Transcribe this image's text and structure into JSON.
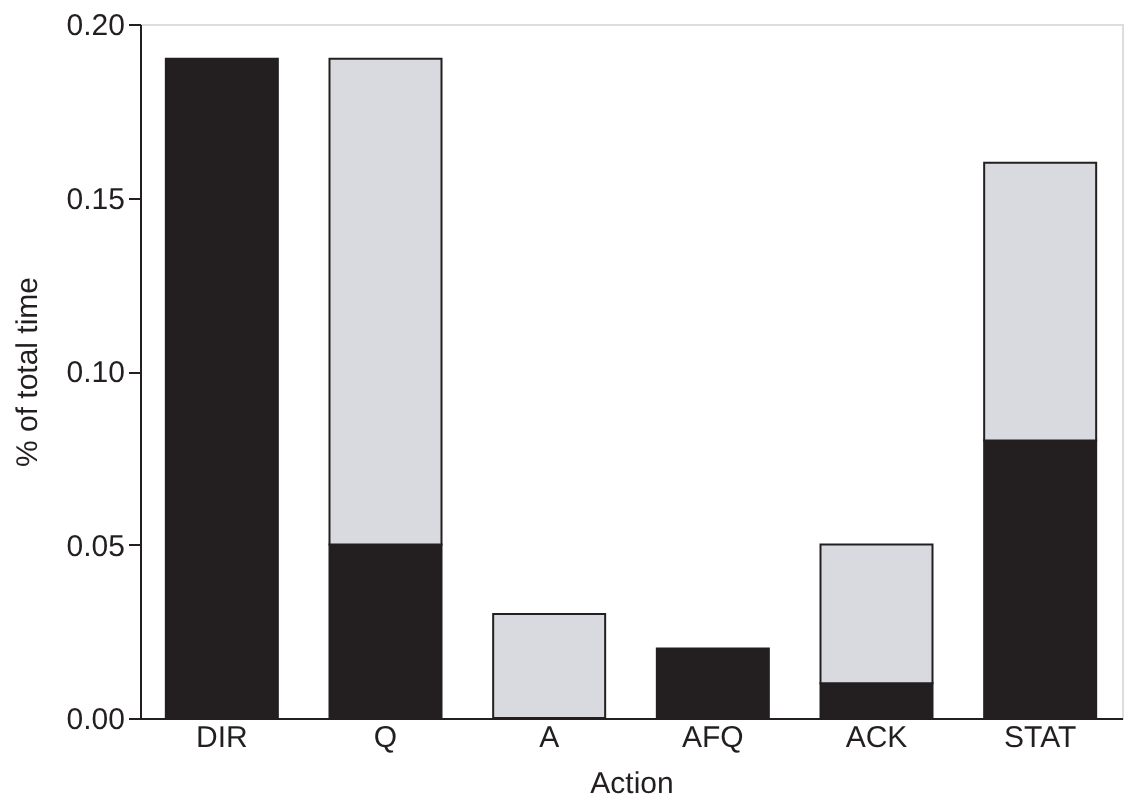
{
  "chart_data": {
    "type": "bar",
    "stacked": true,
    "xlabel": "Action",
    "ylabel": "% of total time",
    "categories": [
      "DIR",
      "Q",
      "A",
      "AFQ",
      "ACK",
      "STAT"
    ],
    "series": [
      {
        "color": "#231f20",
        "values": [
          0.19,
          0.05,
          0,
          0.02,
          0.01,
          0.08
        ]
      },
      {
        "color": "#d9dadf",
        "values": [
          0,
          0.14,
          0.03,
          0,
          0.04,
          0.08
        ]
      }
    ],
    "ylim": [
      0,
      0.2
    ],
    "yticks": [
      {
        "value": 0,
        "label": "0.00"
      },
      {
        "value": 0.05,
        "label": "0.05"
      },
      {
        "value": 0.1,
        "label": "0.10"
      },
      {
        "value": 0.15,
        "label": "0.15"
      },
      {
        "value": 0.2,
        "label": "0.20"
      }
    ],
    "grid": false
  }
}
